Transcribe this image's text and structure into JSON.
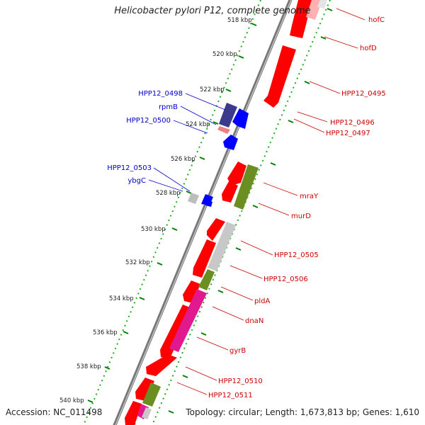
{
  "title": "Helicobacter pylori P12, complete genome",
  "footer": {
    "accession": "Accession: NC_011498",
    "topology": "Topology: circular; Length: 1,673,813 bp; Genes: 1,610"
  },
  "kbp_labels": [
    "518 kbp",
    "520 kbp",
    "522 kbp",
    "524 kbp",
    "526 kbp",
    "528 kbp",
    "530 kbp",
    "532 kbp",
    "534 kbp",
    "536 kbp",
    "538 kbp",
    "540 kbp"
  ],
  "right_labels": [
    "hofC",
    "hofD",
    "HPP12_0495",
    "HPP12_0496",
    "HPP12_0497",
    "mraY",
    "murD",
    "HPP12_0505",
    "HPP12_0506",
    "pldA",
    "dnaN",
    "gyrB",
    "HPP12_0510",
    "HPP12_0511"
  ],
  "left_labels": [
    "HPP12_0498",
    "rpmB",
    "HPP12_0500",
    "HPP12_0503",
    "ybgC"
  ],
  "colors": {
    "forward_gene": "#ff0000",
    "reverse_gene": "#0000ff",
    "rna_gene": "#9e9a9a",
    "cog_green": "#6b8e23",
    "cog_magenta": "#e0198f",
    "cog_gray": "#c8c8c8",
    "cog_navy": "#3b3a8c",
    "tick": "#008000",
    "right_label": "#cc0000",
    "left_label": "#0000cc"
  }
}
